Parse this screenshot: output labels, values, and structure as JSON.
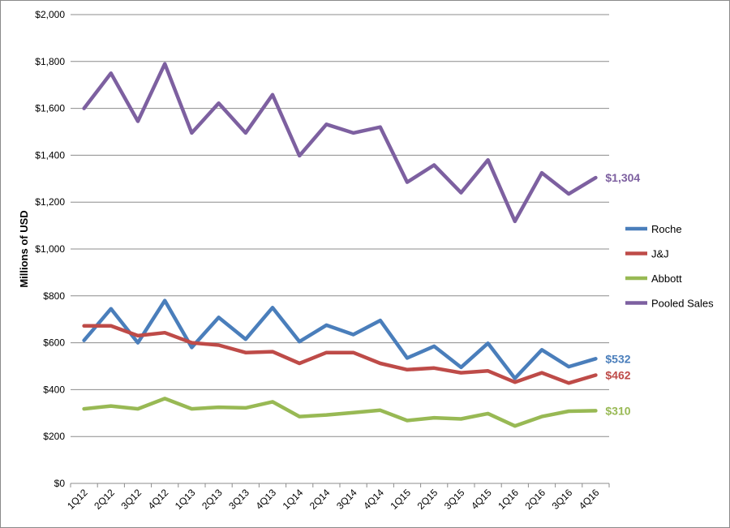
{
  "chart_data": {
    "type": "line",
    "title": "",
    "xlabel": "",
    "ylabel": "Millions of USD",
    "ylim": [
      0,
      2000
    ],
    "y_ticks": [
      "$0",
      "$200",
      "$400",
      "$600",
      "$800",
      "$1,000",
      "$1,200",
      "$1,400",
      "$1,600",
      "$1,800",
      "$2,000"
    ],
    "y_tick_values": [
      0,
      200,
      400,
      600,
      800,
      1000,
      1200,
      1400,
      1600,
      1800,
      2000
    ],
    "grid": "horizontal",
    "legend_position": "right",
    "categories": [
      "1Q12",
      "2Q12",
      "3Q12",
      "4Q12",
      "1Q13",
      "2Q13",
      "3Q13",
      "4Q13",
      "1Q14",
      "2Q14",
      "3Q14",
      "4Q14",
      "1Q15",
      "2Q15",
      "3Q15",
      "4Q15",
      "1Q16",
      "2Q16",
      "3Q16",
      "4Q16"
    ],
    "series": [
      {
        "name": "Roche",
        "color": "#4a7ebb",
        "values": [
          610,
          745,
          600,
          780,
          580,
          708,
          615,
          750,
          605,
          675,
          635,
          695,
          535,
          585,
          495,
          598,
          448,
          570,
          498,
          532
        ],
        "end_label": "$532"
      },
      {
        "name": "J&J",
        "color": "#be4b48",
        "values": [
          672,
          672,
          630,
          643,
          600,
          590,
          558,
          562,
          512,
          558,
          558,
          512,
          485,
          492,
          472,
          480,
          432,
          472,
          428,
          462
        ],
        "end_label": "$462"
      },
      {
        "name": "Abbott",
        "color": "#98b954",
        "values": [
          318,
          330,
          318,
          362,
          318,
          325,
          322,
          348,
          285,
          292,
          302,
          312,
          268,
          280,
          275,
          298,
          245,
          285,
          308,
          310
        ],
        "end_label": "$310"
      },
      {
        "name": "Pooled Sales",
        "color": "#7d60a0",
        "values": [
          1600,
          1750,
          1545,
          1790,
          1495,
          1622,
          1495,
          1658,
          1398,
          1532,
          1495,
          1520,
          1285,
          1358,
          1240,
          1380,
          1118,
          1325,
          1235,
          1304
        ],
        "end_label": "$1,304"
      }
    ]
  }
}
